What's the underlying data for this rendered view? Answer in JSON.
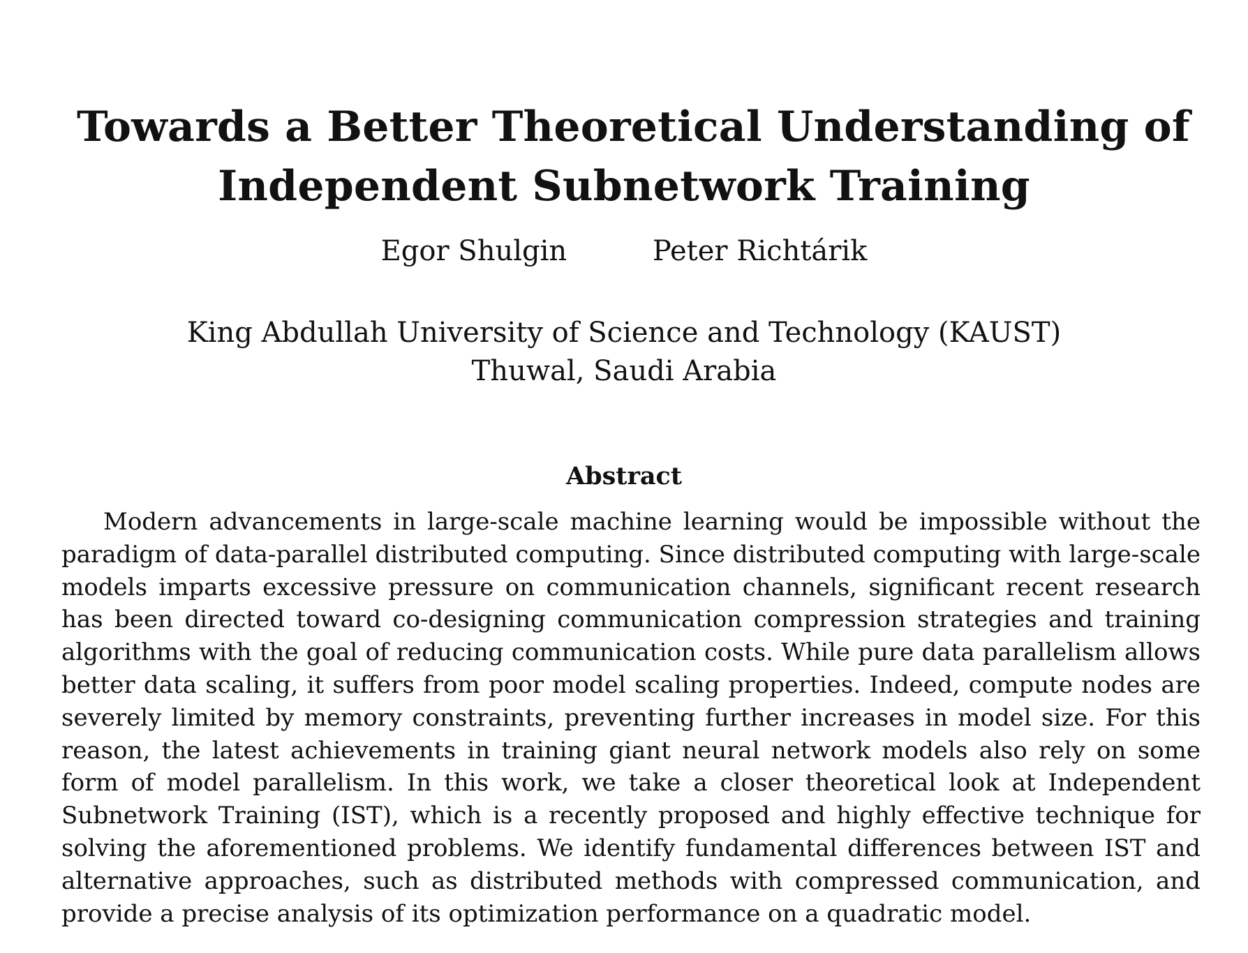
{
  "paper": {
    "title_line_1": "Towards a Better Theoretical Understanding of",
    "title_line_2": "Independent Subnetwork Training",
    "authors": [
      "Egor Shulgin",
      "Peter Richtárik"
    ],
    "affiliation_line_1": "King Abdullah University of Science and Technology (KAUST)",
    "affiliation_line_2": "Thuwal, Saudi Arabia",
    "abstract_heading": "Abstract",
    "abstract_text": "Modern advancements in large-scale machine learning would be impossible without the paradigm of data-parallel distributed computing. Since distributed computing with large-scale models imparts excessive pressure on communication channels, significant recent research has been directed toward co-designing communication compression strategies and training algorithms with the goal of reducing communication costs. While pure data parallelism allows better data scaling, it suffers from poor model scaling properties. Indeed, compute nodes are severely limited by memory constraints, preventing further increases in model size. For this reason, the latest achievements in training giant neural network models also rely on some form of model parallelism. In this work, we take a closer theoretical look at Independent Subnetwork Training (IST), which is a recently proposed and highly effective technique for solving the aforementioned problems. We identify fundamental differences between IST and alternative approaches, such as distributed methods with compressed communication, and provide a precise analysis of its optimization performance on a quadratic model."
  }
}
